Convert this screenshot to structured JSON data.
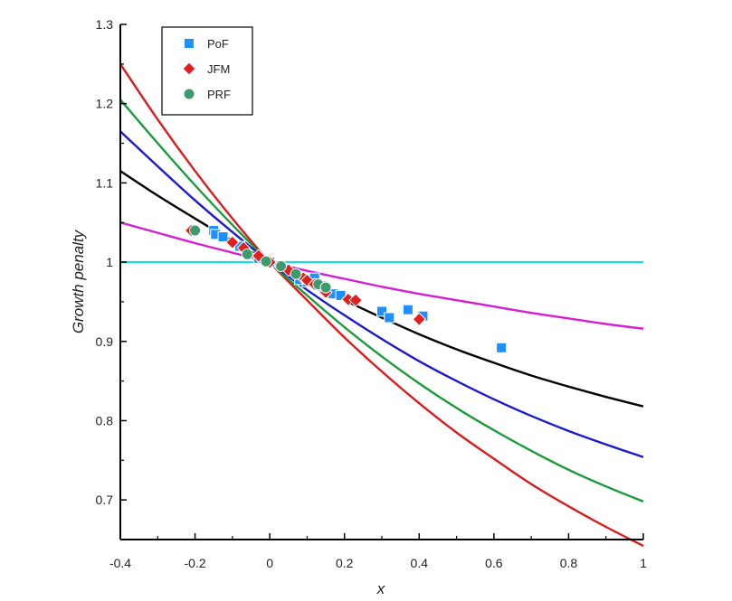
{
  "chart_data": {
    "type": "scatter",
    "xlabel": "x",
    "ylabel": "Growth penalty",
    "xlim": [
      -0.4,
      1.0
    ],
    "ylim": [
      0.65,
      1.3
    ],
    "xticks": [
      "-0.4",
      "-0.2",
      "0",
      "0.2",
      "0.4",
      "0.6",
      "0.8",
      "1"
    ],
    "xtick_values": [
      -0.4,
      -0.2,
      0,
      0.2,
      0.4,
      0.6,
      0.8,
      1.0
    ],
    "yticks": [
      "0.7",
      "0.8",
      "0.9",
      "1",
      "1.1",
      "1.2",
      "1.3"
    ],
    "ytick_values": [
      0.7,
      0.8,
      0.9,
      1.0,
      1.1,
      1.2,
      1.3
    ],
    "grid": false,
    "legend_position": "top-left",
    "legend": [
      {
        "label": "PoF",
        "marker": "square",
        "color": "#1e90ff"
      },
      {
        "label": "JFM",
        "marker": "diamond",
        "color": "#e01f1f"
      },
      {
        "label": "PRF",
        "marker": "circle",
        "color": "#3c9a6b"
      }
    ],
    "curves": [
      {
        "color": "#d81c1c",
        "points": [
          [
            -0.4,
            1.25
          ],
          [
            -0.3,
            1.18
          ],
          [
            -0.2,
            1.115
          ],
          [
            -0.1,
            1.055
          ],
          [
            0,
            1.0
          ],
          [
            0.1,
            0.952
          ],
          [
            0.2,
            0.905
          ],
          [
            0.3,
            0.862
          ],
          [
            0.4,
            0.822
          ],
          [
            0.5,
            0.785
          ],
          [
            0.6,
            0.752
          ],
          [
            0.7,
            0.72
          ],
          [
            0.8,
            0.692
          ],
          [
            0.9,
            0.666
          ],
          [
            1.0,
            0.642
          ]
        ]
      },
      {
        "color": "#1a9a3a",
        "points": [
          [
            -0.4,
            1.205
          ],
          [
            -0.3,
            1.15
          ],
          [
            -0.2,
            1.097
          ],
          [
            -0.1,
            1.047
          ],
          [
            0,
            1.0
          ],
          [
            0.1,
            0.958
          ],
          [
            0.2,
            0.918
          ],
          [
            0.3,
            0.881
          ],
          [
            0.4,
            0.847
          ],
          [
            0.5,
            0.816
          ],
          [
            0.6,
            0.788
          ],
          [
            0.7,
            0.762
          ],
          [
            0.8,
            0.738
          ],
          [
            0.9,
            0.717
          ],
          [
            1.0,
            0.698
          ]
        ]
      },
      {
        "color": "#1a1acc",
        "points": [
          [
            -0.4,
            1.165
          ],
          [
            -0.3,
            1.121
          ],
          [
            -0.2,
            1.078
          ],
          [
            -0.1,
            1.038
          ],
          [
            0,
            1.0
          ],
          [
            0.1,
            0.965
          ],
          [
            0.2,
            0.933
          ],
          [
            0.3,
            0.903
          ],
          [
            0.4,
            0.875
          ],
          [
            0.5,
            0.85
          ],
          [
            0.6,
            0.827
          ],
          [
            0.7,
            0.806
          ],
          [
            0.8,
            0.787
          ],
          [
            0.9,
            0.77
          ],
          [
            1.0,
            0.754
          ]
        ]
      },
      {
        "color": "#000000",
        "points": [
          [
            -0.4,
            1.115
          ],
          [
            -0.3,
            1.084
          ],
          [
            -0.2,
            1.055
          ],
          [
            -0.1,
            1.027
          ],
          [
            0,
            1.0
          ],
          [
            0.1,
            0.975
          ],
          [
            0.2,
            0.952
          ],
          [
            0.3,
            0.93
          ],
          [
            0.4,
            0.909
          ],
          [
            0.5,
            0.89
          ],
          [
            0.6,
            0.873
          ],
          [
            0.7,
            0.857
          ],
          [
            0.8,
            0.843
          ],
          [
            0.9,
            0.83
          ],
          [
            1.0,
            0.818
          ]
        ]
      },
      {
        "color": "#d21fd2",
        "points": [
          [
            -0.4,
            1.05
          ],
          [
            -0.3,
            1.037
          ],
          [
            -0.2,
            1.024
          ],
          [
            -0.1,
            1.012
          ],
          [
            0,
            1.0
          ],
          [
            0.1,
            0.989
          ],
          [
            0.2,
            0.979
          ],
          [
            0.3,
            0.969
          ],
          [
            0.4,
            0.96
          ],
          [
            0.5,
            0.952
          ],
          [
            0.6,
            0.944
          ],
          [
            0.7,
            0.936
          ],
          [
            0.8,
            0.929
          ],
          [
            0.9,
            0.922
          ],
          [
            1.0,
            0.916
          ]
        ]
      },
      {
        "color": "#22d8e0",
        "points": [
          [
            -0.4,
            1.0
          ],
          [
            1.0,
            1.0
          ]
        ]
      }
    ],
    "series": [
      {
        "name": "PoF",
        "marker": "square",
        "color": "#1e90ff",
        "points": [
          [
            -0.15,
            1.04
          ],
          [
            -0.145,
            1.035
          ],
          [
            -0.125,
            1.032
          ],
          [
            -0.08,
            1.02
          ],
          [
            -0.03,
            1.005
          ],
          [
            0.0,
            1.0
          ],
          [
            0.08,
            0.978
          ],
          [
            0.1,
            0.975
          ],
          [
            0.12,
            0.98
          ],
          [
            0.14,
            0.97
          ],
          [
            0.17,
            0.96
          ],
          [
            0.19,
            0.958
          ],
          [
            0.3,
            0.938
          ],
          [
            0.32,
            0.93
          ],
          [
            0.37,
            0.94
          ],
          [
            0.41,
            0.932
          ],
          [
            0.62,
            0.892
          ]
        ]
      },
      {
        "name": "JFM",
        "marker": "diamond",
        "color": "#e01f1f",
        "points": [
          [
            -0.21,
            1.04
          ],
          [
            -0.1,
            1.025
          ],
          [
            -0.07,
            1.018
          ],
          [
            -0.03,
            1.008
          ],
          [
            0.0,
            1.0
          ],
          [
            0.05,
            0.99
          ],
          [
            0.09,
            0.98
          ],
          [
            0.1,
            0.977
          ],
          [
            0.12,
            0.972
          ],
          [
            0.15,
            0.962
          ],
          [
            0.21,
            0.953
          ],
          [
            0.23,
            0.952
          ],
          [
            0.4,
            0.928
          ]
        ]
      },
      {
        "name": "PRF",
        "marker": "circle",
        "color": "#3c9a6b",
        "points": [
          [
            -0.2,
            1.04
          ],
          [
            -0.06,
            1.01
          ],
          [
            -0.01,
            1.001
          ],
          [
            0.03,
            0.995
          ],
          [
            0.07,
            0.985
          ],
          [
            0.13,
            0.972
          ],
          [
            0.15,
            0.968
          ]
        ]
      }
    ]
  }
}
